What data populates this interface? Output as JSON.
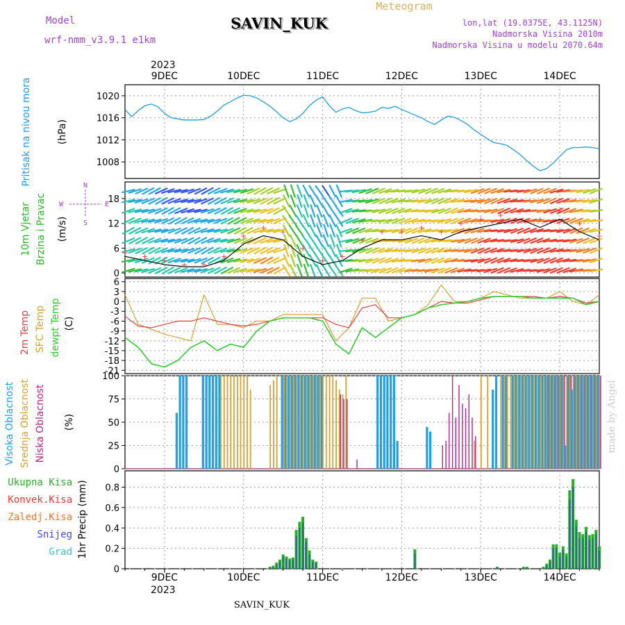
{
  "header": {
    "station": "SAVIN_KUK",
    "product": "Meteogram",
    "model_label": "Model",
    "model_name": "wrf-nmm_v3.9.1 e1km",
    "lonlat": "lon,lat (19.0375E, 43.1125N)",
    "altitude": "Nadmorska Visina 2010m",
    "model_altitude": "Nadmorska Visina u modelu 2070.64m",
    "footer_station": "SAVIN_KUK",
    "credit": "made by Angel",
    "year": "2023"
  },
  "colors": {
    "pressure": "#1e9be6",
    "wind_title": "#22bb22",
    "speed_black": "#000000",
    "gust_red": "#ff3030",
    "temp2m": "#e04040",
    "sfc": "#d8a030",
    "dew": "#30cc30",
    "high_cloud": "#20a0e8",
    "mid_cloud": "#d8a030",
    "low_cloud": "#c0208a",
    "total_precip": "#28b028",
    "convective": "#ff3030",
    "frozen": "#ff7020",
    "snow": "#4444ee",
    "hail": "#30c8c8",
    "purple": "#a040e0"
  },
  "time_axis": {
    "day_labels": [
      "9DEC",
      "10DEC",
      "11DEC",
      "12DEC",
      "13DEC",
      "14DEC"
    ]
  },
  "labels": {
    "pressure_title": "Pritisak na nivou mora",
    "pressure_unit": "(hPa)",
    "wind_title1": "10m Vjetar",
    "wind_title2": "Brzina i Pravac",
    "wind_unit": "(m/s)",
    "compass_n": "N",
    "compass_s": "S",
    "compass_w": "W",
    "compass_e": "E",
    "temp_2m": "2m Temp",
    "temp_sfc": "SFC Temp",
    "temp_dew": "dewpt Temp",
    "temp_unit": "(C)",
    "cloud_high": "Visoka Oblacnost",
    "cloud_mid": "Srednja Oblacnost",
    "cloud_low": "Niska Oblacnost",
    "cloud_unit": "(%)",
    "precip_total": "Ukupna Kisa",
    "precip_conv": "Konvek.Kisa",
    "precip_frozen": "Zaledj.Kisa",
    "precip_snow": "Snijeg",
    "precip_hail": "Grad",
    "precip_unit": "1hr Precip (mm)"
  },
  "chart_data": [
    {
      "type": "line",
      "panel": "pressure",
      "ylabel": "(hPa)",
      "ylim": [
        1005,
        1022
      ],
      "yticks": [
        1008,
        1012,
        1016,
        1020
      ],
      "x_hours": [
        0,
        2,
        4,
        6,
        8,
        10,
        12,
        14,
        16,
        18,
        20,
        22,
        24,
        26,
        28,
        30,
        32,
        34,
        36,
        38,
        40,
        42,
        44,
        46,
        48,
        50,
        52,
        54,
        56,
        58,
        60,
        62,
        64,
        66,
        68,
        70,
        72,
        74,
        76,
        78,
        80,
        82,
        84,
        86,
        88,
        90,
        92,
        94,
        96,
        98,
        100,
        102,
        104,
        106,
        108,
        110,
        112,
        114,
        116,
        118,
        120,
        122,
        124,
        126,
        128,
        130,
        132,
        134,
        136,
        138,
        140,
        142,
        144
      ],
      "series": [
        {
          "values": [
            1017.5,
            1016.2,
            1017.3,
            1018.2,
            1018.5,
            1018.0,
            1016.8,
            1016.0,
            1015.8,
            1015.6,
            1015.6,
            1015.6,
            1015.7,
            1016.3,
            1017.2,
            1018.3,
            1018.9,
            1019.6,
            1020.1,
            1020.0,
            1019.6,
            1018.9,
            1018.1,
            1017.1,
            1016.0,
            1015.3,
            1015.8,
            1016.8,
            1018.2,
            1019.2,
            1019.8,
            1018.2,
            1017.0,
            1017.6,
            1017.9,
            1017.3,
            1016.9,
            1017.0,
            1017.2,
            1017.9,
            1017.7,
            1018.1,
            1017.5,
            1017.0,
            1016.5,
            1016.0,
            1015.3,
            1014.8,
            1015.6,
            1016.3,
            1016.1,
            1015.5,
            1014.8,
            1013.8,
            1013.0,
            1012.2,
            1011.5,
            1011.3,
            1011.0,
            1010.2,
            1009.3,
            1008.2,
            1007.2,
            1006.4,
            1006.8,
            1007.8,
            1009.0,
            1010.2,
            1010.6,
            1010.6,
            1010.7,
            1010.6,
            1010.4
          ]
        }
      ]
    },
    {
      "type": "line",
      "panel": "wind",
      "ylabel": "(m/s)",
      "ylim": [
        -1,
        22
      ],
      "yticks": [
        0,
        6,
        12,
        18
      ],
      "x_hours": [
        0,
        6,
        12,
        18,
        24,
        30,
        36,
        42,
        48,
        54,
        60,
        66,
        72,
        78,
        84,
        90,
        96,
        102,
        108,
        114,
        120,
        126,
        132,
        138,
        144
      ],
      "series": [
        {
          "name": "speed",
          "values": [
            4,
            3,
            2,
            1.5,
            1.5,
            3,
            7,
            9,
            8,
            4,
            2,
            3,
            6,
            8,
            8,
            9,
            8,
            10,
            11,
            12,
            13,
            11,
            13,
            10,
            8
          ]
        },
        {
          "name": "gust",
          "values": [
            5,
            4,
            3,
            2,
            2,
            4,
            9,
            11,
            10,
            6,
            3,
            4,
            8,
            10,
            10,
            11,
            10,
            12,
            13,
            14,
            15,
            13,
            15,
            12,
            9
          ]
        }
      ]
    },
    {
      "type": "line",
      "panel": "temperature",
      "ylabel": "(C)",
      "ylim": [
        -22,
        7
      ],
      "yticks": [
        6,
        3,
        0,
        -3,
        -6,
        -9,
        -12,
        -15,
        -18,
        -21
      ],
      "x_hours": [
        0,
        4,
        8,
        12,
        16,
        20,
        24,
        28,
        32,
        36,
        40,
        44,
        48,
        52,
        56,
        60,
        64,
        68,
        72,
        76,
        80,
        84,
        88,
        92,
        96,
        100,
        104,
        108,
        112,
        116,
        120,
        124,
        128,
        132,
        136,
        140,
        144
      ],
      "series": [
        {
          "name": "2m Temp",
          "values": [
            -4.5,
            -7.5,
            -8,
            -7,
            -6,
            -6,
            -5,
            -6,
            -7,
            -7.5,
            -7,
            -6,
            -5,
            -5,
            -5,
            -5,
            -7,
            -8,
            -2,
            -1,
            -5,
            -5,
            -4,
            -2,
            0,
            -0.5,
            -0.5,
            0.5,
            1.5,
            1.5,
            1.5,
            1.5,
            1,
            1.5,
            1,
            -0.5,
            0
          ]
        },
        {
          "name": "SFC Temp",
          "values": [
            2,
            -7,
            -8.5,
            -10,
            -11,
            -12,
            2,
            -7,
            -7,
            -8,
            -6,
            -6,
            -4,
            -4,
            -4,
            -4,
            -12,
            -8,
            1,
            1,
            -6,
            -5,
            -4,
            -1,
            5,
            0,
            0,
            1,
            3,
            2,
            1,
            1,
            1,
            3,
            0,
            -1,
            2
          ]
        },
        {
          "name": "dewpt Temp",
          "values": [
            -11,
            -14,
            -19,
            -20,
            -18,
            -14,
            -12,
            -15,
            -13,
            -14,
            -9,
            -6,
            -5,
            -5,
            -5,
            -6,
            -13,
            -16,
            -8,
            -11,
            -8,
            -5,
            -4,
            -2,
            -1,
            -0.5,
            0,
            1,
            1.5,
            1.5,
            1.5,
            1,
            1,
            1,
            1,
            -1,
            0
          ]
        }
      ]
    },
    {
      "type": "bar",
      "panel": "clouds",
      "ylabel": "(%)",
      "ylim": [
        0,
        100
      ],
      "yticks": [
        0,
        25,
        50,
        75,
        100
      ],
      "x_hours": [
        16,
        17,
        18,
        19,
        24,
        25,
        26,
        27,
        28,
        29,
        30,
        31,
        32,
        33,
        34,
        35,
        36,
        37,
        38,
        39,
        44,
        45,
        46,
        48,
        49,
        50,
        51,
        52,
        53,
        54,
        55,
        56,
        57,
        58,
        59,
        60,
        61,
        62,
        63,
        64,
        65,
        66,
        67,
        70,
        77,
        78,
        79,
        80,
        81,
        82,
        83,
        84,
        87,
        88,
        92,
        93,
        94,
        95,
        96,
        97,
        98,
        99,
        100,
        101,
        102,
        103,
        104,
        105,
        106,
        107,
        108,
        110,
        112,
        113,
        114,
        115,
        116,
        117,
        118,
        119,
        120,
        121,
        122,
        123,
        124,
        125,
        126,
        127,
        128,
        129,
        130,
        131,
        132,
        133,
        134,
        135,
        136,
        137,
        138,
        139,
        140,
        141,
        142,
        143,
        144
      ],
      "series": [
        {
          "name": "Visoka Oblacnost",
          "values": [
            60,
            100,
            100,
            100,
            100,
            100,
            100,
            100,
            100,
            100,
            0,
            0,
            0,
            0,
            0,
            0,
            0,
            0,
            0,
            0,
            0,
            0,
            0,
            100,
            100,
            100,
            100,
            100,
            100,
            100,
            100,
            100,
            100,
            100,
            100,
            100,
            0,
            0,
            0,
            0,
            0,
            0,
            0,
            0,
            100,
            100,
            100,
            100,
            100,
            100,
            30,
            0,
            0,
            0,
            45,
            40,
            0,
            0,
            0,
            0,
            0,
            0,
            0,
            0,
            0,
            0,
            0,
            0,
            0,
            0,
            0,
            0,
            85,
            100,
            0,
            100,
            100,
            0,
            100,
            100,
            100,
            100,
            100,
            100,
            100,
            100,
            100,
            100,
            100,
            100,
            100,
            100,
            100,
            100,
            25,
            100,
            85,
            100,
            100,
            100,
            100,
            100,
            100,
            100,
            100
          ]
        },
        {
          "name": "Srednja Oblacnost",
          "values": [
            0,
            0,
            0,
            0,
            0,
            0,
            0,
            0,
            0,
            100,
            100,
            100,
            100,
            100,
            100,
            100,
            100,
            100,
            85,
            0,
            90,
            95,
            100,
            100,
            100,
            100,
            100,
            100,
            100,
            100,
            100,
            100,
            100,
            100,
            100,
            100,
            100,
            100,
            100,
            95,
            85,
            80,
            100,
            0,
            0,
            0,
            0,
            0,
            0,
            0,
            0,
            0,
            0,
            0,
            0,
            0,
            0,
            0,
            0,
            0,
            0,
            0,
            0,
            0,
            0,
            0,
            0,
            0,
            30,
            0,
            100,
            100,
            0,
            0,
            100,
            100,
            100,
            100,
            100,
            100,
            100,
            100,
            100,
            100,
            100,
            100,
            100,
            100,
            100,
            100,
            100,
            100,
            100,
            100,
            100,
            100,
            100,
            100,
            100,
            100,
            100,
            100,
            100,
            100,
            100
          ]
        },
        {
          "name": "Niska Oblacnost",
          "values": [
            0,
            0,
            0,
            0,
            0,
            0,
            0,
            0,
            0,
            0,
            0,
            0,
            0,
            0,
            0,
            0,
            0,
            0,
            0,
            0,
            0,
            0,
            0,
            0,
            0,
            0,
            0,
            0,
            0,
            0,
            0,
            0,
            0,
            0,
            0,
            0,
            0,
            0,
            0,
            0,
            80,
            75,
            75,
            10,
            0,
            0,
            0,
            0,
            0,
            0,
            0,
            0,
            0,
            0,
            0,
            0,
            0,
            0,
            25,
            30,
            60,
            100,
            55,
            90,
            70,
            65,
            80,
            55,
            35,
            0,
            0,
            0,
            0,
            0,
            0,
            0,
            0,
            0,
            0,
            0,
            0,
            0,
            0,
            0,
            0,
            0,
            0,
            0,
            100,
            100,
            100,
            100,
            100,
            100,
            100,
            100,
            100,
            100,
            100,
            100,
            100,
            100,
            100,
            100,
            100
          ]
        }
      ]
    },
    {
      "type": "bar",
      "panel": "precipitation",
      "ylabel": "1hr Precip (mm)",
      "ylim": [
        0,
        0.96
      ],
      "yticks": [
        0,
        0.2,
        0.4,
        0.6,
        0.8
      ],
      "x_hours": [
        44,
        45,
        46,
        47,
        48,
        49,
        50,
        51,
        52,
        53,
        54,
        55,
        56,
        57,
        58,
        88,
        113,
        121,
        122,
        127,
        128,
        129,
        130,
        131,
        132,
        133,
        134,
        135,
        136,
        137,
        138,
        139,
        140,
        141,
        142,
        143,
        144
      ],
      "series": [
        {
          "name": "Ukupna Kisa",
          "values": [
            0.02,
            0.03,
            0.06,
            0.09,
            0.14,
            0.12,
            0.1,
            0.11,
            0.38,
            0.46,
            0.51,
            0.3,
            0.18,
            0.09,
            0.07,
            0.19,
            0.02,
            0.02,
            0.02,
            0.02,
            0.05,
            0.09,
            0.24,
            0.24,
            0.16,
            0.22,
            0.15,
            0.77,
            0.88,
            0.48,
            0.36,
            0.34,
            0.41,
            0.33,
            0.34,
            0.38,
            0.22
          ]
        },
        {
          "name": "Snijeg",
          "values": [
            0.01,
            0.02,
            0.04,
            0.07,
            0.12,
            0.1,
            0.08,
            0.09,
            0.32,
            0.4,
            0.45,
            0.26,
            0.14,
            0.07,
            0.05,
            0.15,
            0.01,
            0.01,
            0.01,
            0.01,
            0.03,
            0.07,
            0.2,
            0.2,
            0.12,
            0.18,
            0.12,
            0.68,
            0.8,
            0.42,
            0.3,
            0.3,
            0.36,
            0.28,
            0.3,
            0.34,
            0.18
          ]
        }
      ]
    }
  ]
}
